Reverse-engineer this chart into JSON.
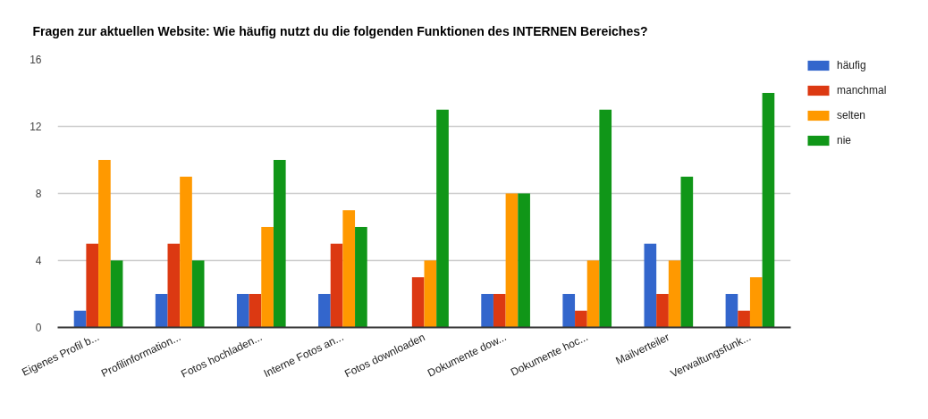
{
  "chart_data": {
    "type": "bar",
    "title": "Fragen zur aktuellen Website: Wie häufig nutzt du die folgenden Funktionen des INTERNEN Bereiches?",
    "categories": [
      "Eigenes Profil b...",
      "Profilinformation...",
      "Fotos hochladen...",
      "Interne Fotos an...",
      "Fotos downloaden",
      "Dokumente dow...",
      "Dokumente hoc...",
      "Mailverteiler",
      "Verwaltungsfunk..."
    ],
    "series": [
      {
        "name": "häufig",
        "color": "#3366cc",
        "values": [
          1,
          2,
          2,
          2,
          0,
          2,
          2,
          5,
          2
        ]
      },
      {
        "name": "manchmal",
        "color": "#dc3912",
        "values": [
          5,
          5,
          2,
          5,
          3,
          2,
          1,
          2,
          1
        ]
      },
      {
        "name": "selten",
        "color": "#ff9900",
        "values": [
          10,
          9,
          6,
          7,
          4,
          8,
          4,
          4,
          3
        ]
      },
      {
        "name": "nie",
        "color": "#109618",
        "values": [
          4,
          4,
          10,
          6,
          13,
          8,
          13,
          9,
          14
        ]
      }
    ],
    "ylim": [
      0,
      16
    ],
    "yticks": [
      0,
      4,
      8,
      12,
      16
    ],
    "grid": "y",
    "legend": "top right"
  }
}
